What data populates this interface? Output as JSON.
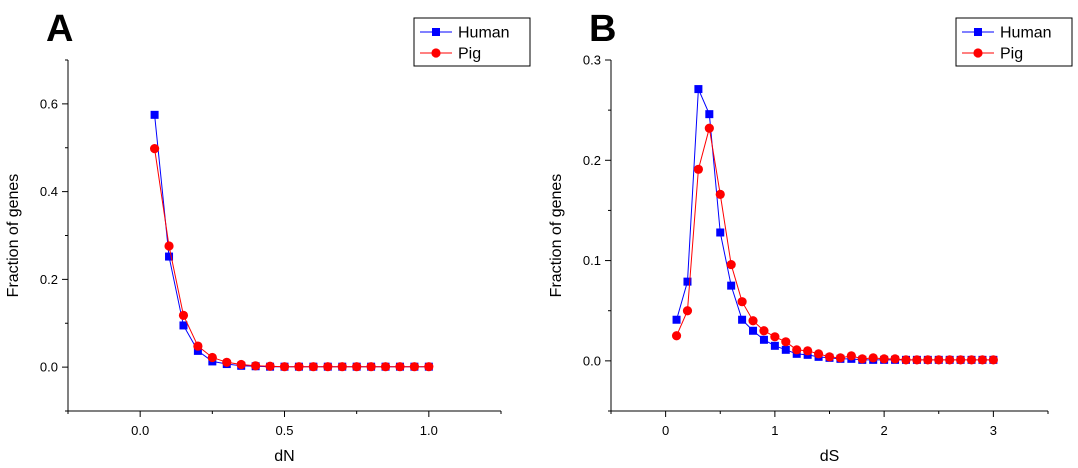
{
  "figure": {
    "panels": [
      {
        "label": "A"
      },
      {
        "label": "B"
      }
    ]
  },
  "chart_data": [
    {
      "panel": "A",
      "type": "line",
      "xlabel": "dN",
      "ylabel": "Fraction of genes",
      "xlim": [
        -0.25,
        1.25
      ],
      "ylim": [
        -0.1,
        0.7
      ],
      "xticks": [
        0.0,
        0.5,
        1.0
      ],
      "xtick_labels": [
        "0.0",
        "0.5",
        "1.0"
      ],
      "yticks": [
        0.0,
        0.2,
        0.4,
        0.6
      ],
      "ytick_labels": [
        "0.0",
        "0.2",
        "0.4",
        "0.6"
      ],
      "grid": false,
      "legend": "top-right",
      "series": [
        {
          "name": "Human",
          "color": "#0000ff",
          "marker": "square",
          "x": [
            0.05,
            0.1,
            0.15,
            0.2,
            0.25,
            0.3,
            0.35,
            0.4,
            0.45,
            0.5,
            0.55,
            0.6,
            0.65,
            0.7,
            0.75,
            0.8,
            0.85,
            0.9,
            0.95,
            1.0
          ],
          "y": [
            0.575,
            0.252,
            0.095,
            0.037,
            0.013,
            0.007,
            0.003,
            0.002,
            0.001,
            0.001,
            0.001,
            0.001,
            0.001,
            0.001,
            0.001,
            0.001,
            0.001,
            0.001,
            0.001,
            0.001
          ]
        },
        {
          "name": "Pig",
          "color": "#ff0000",
          "marker": "circle",
          "x": [
            0.05,
            0.1,
            0.15,
            0.2,
            0.25,
            0.3,
            0.35,
            0.4,
            0.45,
            0.5,
            0.55,
            0.6,
            0.65,
            0.7,
            0.75,
            0.8,
            0.85,
            0.9,
            0.95,
            1.0
          ],
          "y": [
            0.498,
            0.276,
            0.118,
            0.048,
            0.022,
            0.011,
            0.006,
            0.003,
            0.002,
            0.001,
            0.001,
            0.001,
            0.001,
            0.001,
            0.001,
            0.001,
            0.001,
            0.001,
            0.001,
            0.001
          ]
        }
      ]
    },
    {
      "panel": "B",
      "type": "line",
      "xlabel": "dS",
      "ylabel": "Fraction of genes",
      "xlim": [
        -0.5,
        3.5
      ],
      "ylim": [
        -0.05,
        0.3
      ],
      "xticks": [
        0,
        1,
        2,
        3
      ],
      "xtick_labels": [
        "0",
        "1",
        "2",
        "3"
      ],
      "yticks": [
        0.0,
        0.1,
        0.2,
        0.3
      ],
      "ytick_labels": [
        "0.0",
        "0.1",
        "0.2",
        "0.3"
      ],
      "grid": false,
      "legend": "top-right",
      "series": [
        {
          "name": "Human",
          "color": "#0000ff",
          "marker": "square",
          "x": [
            0.1,
            0.2,
            0.3,
            0.4,
            0.5,
            0.6,
            0.7,
            0.8,
            0.9,
            1.0,
            1.1,
            1.2,
            1.3,
            1.4,
            1.5,
            1.6,
            1.7,
            1.8,
            1.9,
            2.0,
            2.1,
            2.2,
            2.3,
            2.4,
            2.5,
            2.6,
            2.7,
            2.8,
            2.9,
            3.0
          ],
          "y": [
            0.041,
            0.079,
            0.271,
            0.246,
            0.128,
            0.075,
            0.041,
            0.03,
            0.021,
            0.015,
            0.011,
            0.007,
            0.006,
            0.004,
            0.003,
            0.002,
            0.002,
            0.001,
            0.001,
            0.001,
            0.001,
            0.001,
            0.001,
            0.001,
            0.001,
            0.001,
            0.001,
            0.001,
            0.001,
            0.001
          ]
        },
        {
          "name": "Pig",
          "color": "#ff0000",
          "marker": "circle",
          "x": [
            0.1,
            0.2,
            0.3,
            0.4,
            0.5,
            0.6,
            0.7,
            0.8,
            0.9,
            1.0,
            1.1,
            1.2,
            1.3,
            1.4,
            1.5,
            1.6,
            1.7,
            1.8,
            1.9,
            2.0,
            2.1,
            2.2,
            2.3,
            2.4,
            2.5,
            2.6,
            2.7,
            2.8,
            2.9,
            3.0
          ],
          "y": [
            0.025,
            0.05,
            0.191,
            0.232,
            0.166,
            0.096,
            0.059,
            0.04,
            0.03,
            0.024,
            0.019,
            0.011,
            0.01,
            0.007,
            0.004,
            0.003,
            0.005,
            0.002,
            0.003,
            0.002,
            0.002,
            0.001,
            0.001,
            0.001,
            0.001,
            0.001,
            0.001,
            0.001,
            0.001,
            0.001
          ]
        }
      ]
    }
  ]
}
